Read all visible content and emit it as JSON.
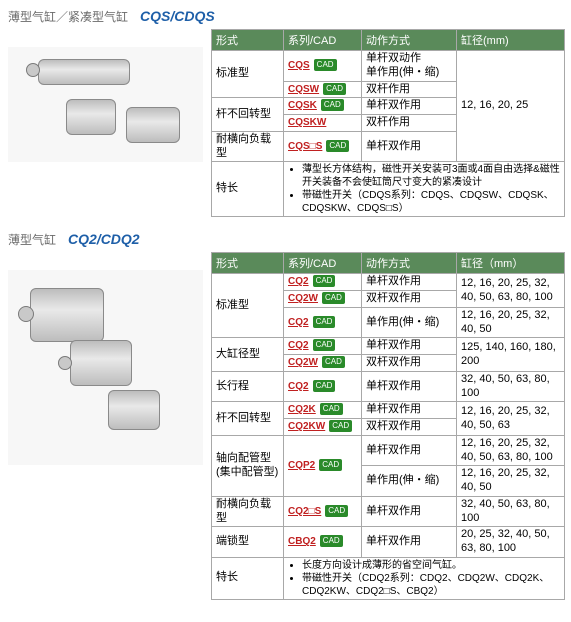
{
  "sections": [
    {
      "title_cn": "薄型气缸／紧凑型气缸",
      "title_model": "CQS/CDQS",
      "headers": [
        "形式",
        "系列/CAD",
        "动作方式",
        "缸径(mm)"
      ],
      "img_class": "small",
      "rows": [
        {
          "type": "标准型",
          "type_rowspan": 2,
          "series": "CQS",
          "cad": true,
          "action": "单杆双动作\n单作用(伸・缩)",
          "bore": "12, 16, 20, 25",
          "bore_rowspan": 5
        },
        {
          "series": "CQSW",
          "cad": true,
          "action": "双杆作用"
        },
        {
          "type": "杆不回转型",
          "type_rowspan": 2,
          "series": "CQSK",
          "cad": true,
          "action": "单杆双作用"
        },
        {
          "series": "CQSKW",
          "cad": false,
          "action": "双杆作用"
        },
        {
          "type": "耐横向负载型",
          "series": "CQS□S",
          "cad": true,
          "action": "单杆双作用"
        }
      ],
      "feature_label": "特长",
      "feature_items": [
        "薄型长方体结构，磁性开关安装可3面或4面自由选择&磁性开关装备不会使缸筒尺寸变大的紧凑设计",
        "带磁性开关（CDQS系列：CDQS、CDQSW、CDQSK、CDQSKW、CDQS□S）"
      ]
    },
    {
      "title_cn": "薄型气缸",
      "title_model": "CQ2/CDQ2",
      "headers": [
        "形式",
        "系列/CAD",
        "动作方式",
        "缸径（mm）"
      ],
      "img_class": "big",
      "rows": [
        {
          "type": "标准型",
          "type_rowspan": 3,
          "series": "CQ2",
          "cad": true,
          "action": "单杆双作用",
          "bore": "12, 16, 20, 25, 32, 40, 50, 63, 80, 100"
        },
        {
          "series": "CQ2W",
          "cad": true,
          "action": "双杆双作用",
          "bore_continue": true
        },
        {
          "series": "CQ2",
          "cad": true,
          "action": "单作用(伸・缩)",
          "bore": "12, 16, 20, 25, 32, 40, 50"
        },
        {
          "type": "大缸径型",
          "type_rowspan": 2,
          "series": "CQ2",
          "cad": true,
          "action": "单杆双作用",
          "bore": "125, 140, 160, 180, 200",
          "bore_rowspan": 2
        },
        {
          "series": "CQ2W",
          "cad": true,
          "action": "双杆双作用"
        },
        {
          "type": "长行程",
          "series": "CQ2",
          "cad": true,
          "action": "单杆双作用",
          "bore": "32, 40, 50, 63, 80, 100"
        },
        {
          "type": "杆不回转型",
          "type_rowspan": 2,
          "series": "CQ2K",
          "cad": true,
          "action": "单杆双作用",
          "bore": "12, 16, 20, 25, 32, 40, 50, 63",
          "bore_rowspan": 2
        },
        {
          "series": "CQ2KW",
          "cad": true,
          "action": "双杆双作用"
        },
        {
          "type": "轴向配管型\n(集中配管型)",
          "type_rowspan": 2,
          "series": "CQP2",
          "cad": true,
          "action": "单杆双作用",
          "bore": "12, 16, 20, 25, 32, 40, 50, 63, 80, 100"
        },
        {
          "series_continue": true,
          "action": "单作用(伸・缩)",
          "bore": "12, 16, 20, 25, 32, 40, 50"
        },
        {
          "type": "耐横向负载型",
          "series": "CQ2□S",
          "cad": true,
          "action": "单杆双作用",
          "bore": "32, 40, 50, 63, 80, 100"
        },
        {
          "type": "端锁型",
          "series": "CBQ2",
          "cad": true,
          "action": "单杆双作用",
          "bore": "20, 25, 32, 40, 50, 63, 80, 100"
        }
      ],
      "feature_label": "特长",
      "feature_items": [
        "长度方向设计成薄形的省空间气缸。",
        "带磁性开关（CDQ2系列：CDQ2、CDQ2W、CDQ2K、CDQ2KW、CDQ2□S、CBQ2）"
      ]
    }
  ]
}
